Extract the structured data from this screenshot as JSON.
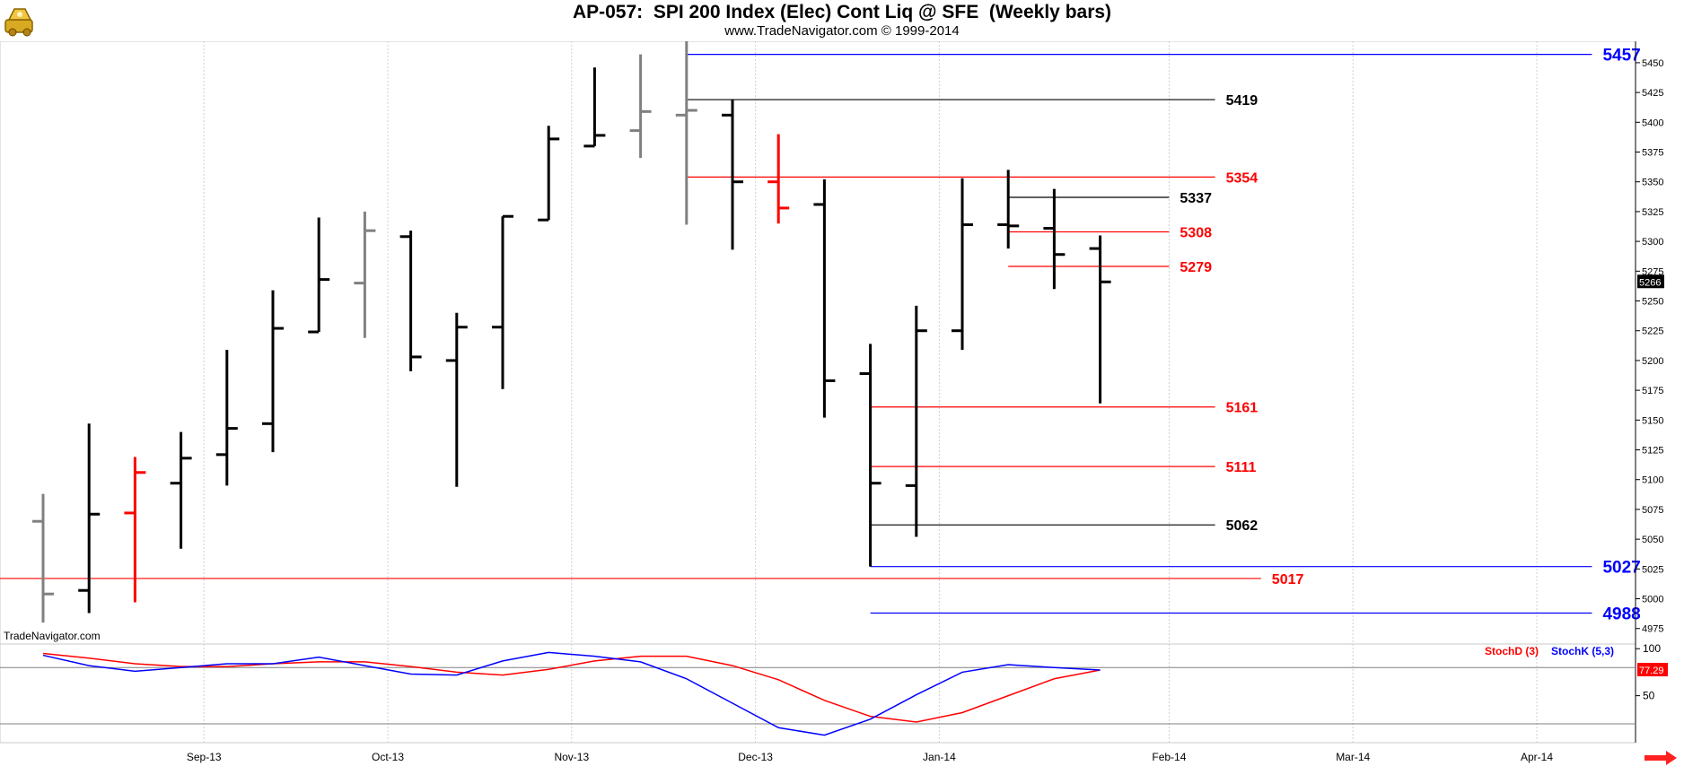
{
  "header": {
    "title": "AP-057:  SPI 200 Index (Elec) Cont Liq @ SFE  (Weekly bars)",
    "subtitle": "www.TradeNavigator.com © 1999-2014",
    "logo_icon": "trading-logo-icon"
  },
  "watermark": "TradeNavigator.com",
  "colors": {
    "up_bar": "#000000",
    "down_bar": "#000000",
    "gray_bar": "#808080",
    "red_bar": "#ff0000",
    "blue_line": "#0000ff",
    "red_line": "#ff0000",
    "black_line": "#000000",
    "stoch_d": "#ff0000",
    "stoch_k": "#0000ff"
  },
  "chart_data": [
    {
      "type": "ohlc",
      "title": "AP-057:  SPI 200 Index (Elec) Cont Liq @ SFE  (Weekly bars)",
      "y_ticks": [
        4975,
        5000,
        5025,
        5050,
        5075,
        5100,
        5125,
        5150,
        5175,
        5200,
        5225,
        5250,
        5275,
        5300,
        5325,
        5350,
        5375,
        5400,
        5425,
        5450
      ],
      "ylim": [
        4962,
        5468
      ],
      "x_labels": [
        "Sep-13",
        "Oct-13",
        "Nov-13",
        "Dec-13",
        "Jan-14",
        "Feb-14",
        "Mar-14",
        "Apr-14"
      ],
      "x_label_weeks": [
        3.5,
        7.5,
        11.5,
        15.5,
        19.5,
        24.5,
        28.5,
        32.5
      ],
      "last_price": "5266",
      "bars": [
        {
          "w": 0,
          "o": 5065,
          "h": 5088,
          "l": 4980,
          "c": 5004,
          "color": "gray"
        },
        {
          "w": 1,
          "o": 5007,
          "h": 5147,
          "l": 4988,
          "c": 5071,
          "color": "black"
        },
        {
          "w": 2,
          "o": 5072,
          "h": 5119,
          "l": 4997,
          "c": 5106,
          "color": "red"
        },
        {
          "w": 3,
          "o": 5097,
          "h": 5140,
          "l": 5042,
          "c": 5118,
          "color": "black"
        },
        {
          "w": 4,
          "o": 5121,
          "h": 5209,
          "l": 5095,
          "c": 5143,
          "color": "black"
        },
        {
          "w": 5,
          "o": 5147,
          "h": 5259,
          "l": 5123,
          "c": 5227,
          "color": "black"
        },
        {
          "w": 6,
          "o": 5224,
          "h": 5320,
          "l": 5224,
          "c": 5268,
          "color": "black"
        },
        {
          "w": 7,
          "o": 5265,
          "h": 5325,
          "l": 5219,
          "c": 5309,
          "color": "gray"
        },
        {
          "w": 8,
          "o": 5304,
          "h": 5309,
          "l": 5191,
          "c": 5203,
          "color": "black"
        },
        {
          "w": 9,
          "o": 5200,
          "h": 5240,
          "l": 5094,
          "c": 5228,
          "color": "black"
        },
        {
          "w": 10,
          "o": 5228,
          "h": 5321,
          "l": 5176,
          "c": 5321,
          "color": "black"
        },
        {
          "w": 11,
          "o": 5318,
          "h": 5397,
          "l": 5318,
          "c": 5386,
          "color": "black"
        },
        {
          "w": 12,
          "o": 5380,
          "h": 5446,
          "l": 5380,
          "c": 5389,
          "color": "black"
        },
        {
          "w": 13,
          "o": 5393,
          "h": 5457,
          "l": 5370,
          "c": 5409,
          "color": "gray"
        },
        {
          "w": 14,
          "o": 5406,
          "h": 5468,
          "l": 5314,
          "c": 5410,
          "color": "gray"
        },
        {
          "w": 15,
          "o": 5406,
          "h": 5419,
          "l": 5293,
          "c": 5350,
          "color": "black"
        },
        {
          "w": 16,
          "o": 5350,
          "h": 5390,
          "l": 5315,
          "c": 5328,
          "color": "red"
        },
        {
          "w": 17,
          "o": 5331,
          "h": 5352,
          "l": 5152,
          "c": 5183,
          "color": "black"
        },
        {
          "w": 18,
          "o": 5189,
          "h": 5214,
          "l": 5027,
          "c": 5097,
          "color": "black"
        },
        {
          "w": 19,
          "o": 5095,
          "h": 5246,
          "l": 5052,
          "c": 5225,
          "color": "black"
        },
        {
          "w": 20,
          "o": 5225,
          "h": 5353,
          "l": 5209,
          "c": 5314,
          "color": "black"
        },
        {
          "w": 21,
          "o": 5314,
          "h": 5360,
          "l": 5294,
          "c": 5313,
          "color": "black"
        },
        {
          "w": 22,
          "o": 5311,
          "h": 5344,
          "l": 5260,
          "c": 5289,
          "color": "black"
        },
        {
          "w": 23,
          "o": 5294,
          "h": 5305,
          "l": 5164,
          "c": 5266,
          "color": "black"
        }
      ],
      "levels": [
        {
          "value": 5457,
          "label": "5457",
          "color": "blue",
          "from_week": 14,
          "to_week": 33.7,
          "label_style": "big"
        },
        {
          "value": 5419,
          "label": "5419",
          "color": "black",
          "from_week": 14,
          "to_week": 25.5,
          "label_style": "normal"
        },
        {
          "value": 5354,
          "label": "5354",
          "color": "red",
          "from_week": 14,
          "to_week": 25.5,
          "label_style": "normal"
        },
        {
          "value": 5337,
          "label": "5337",
          "color": "black",
          "from_week": 21,
          "to_week": 24.5,
          "label_style": "normal"
        },
        {
          "value": 5308,
          "label": "5308",
          "color": "red",
          "from_week": 21,
          "to_week": 24.5,
          "label_style": "normal"
        },
        {
          "value": 5279,
          "label": "5279",
          "color": "red",
          "from_week": 21,
          "to_week": 24.5,
          "label_style": "normal"
        },
        {
          "value": 5161,
          "label": "5161",
          "color": "red",
          "from_week": 18,
          "to_week": 25.5,
          "label_style": "normal"
        },
        {
          "value": 5111,
          "label": "5111",
          "color": "red",
          "from_week": 18,
          "to_week": 25.5,
          "label_style": "normal"
        },
        {
          "value": 5062,
          "label": "5062",
          "color": "black",
          "from_week": 18,
          "to_week": 25.5,
          "label_style": "normal"
        },
        {
          "value": 5027,
          "label": "5027",
          "color": "blue",
          "from_week": 18,
          "to_week": 33.7,
          "label_style": "big"
        },
        {
          "value": 5017,
          "label": "5017",
          "color": "red",
          "from_week": -1,
          "to_week": 26.5,
          "label_style": "normal"
        },
        {
          "value": 4988,
          "label": "4988",
          "color": "blue",
          "from_week": 18,
          "to_week": 33.7,
          "label_style": "big"
        }
      ]
    },
    {
      "type": "line",
      "title": "",
      "legend": [
        "StochD (3)",
        "StochK (5,3)"
      ],
      "y_ticks": [
        50,
        100
      ],
      "ylim": [
        0,
        105
      ],
      "hlines": [
        80,
        20
      ],
      "last_value": "77.29",
      "series": [
        {
          "name": "StochD (3)",
          "color": "red",
          "values": [
            95,
            90,
            84,
            81,
            81,
            84,
            86,
            86,
            81,
            75,
            72,
            78,
            87,
            92,
            92,
            82,
            67,
            45,
            28,
            22,
            32,
            50,
            68,
            77.29
          ]
        },
        {
          "name": "StochK (5,3)",
          "color": "blue",
          "values": [
            93,
            82,
            76,
            80,
            84,
            84,
            91,
            82,
            73,
            72,
            87,
            96,
            92,
            86,
            68,
            42,
            16,
            8,
            25,
            51,
            75,
            83,
            80,
            77.29
          ]
        }
      ]
    }
  ]
}
